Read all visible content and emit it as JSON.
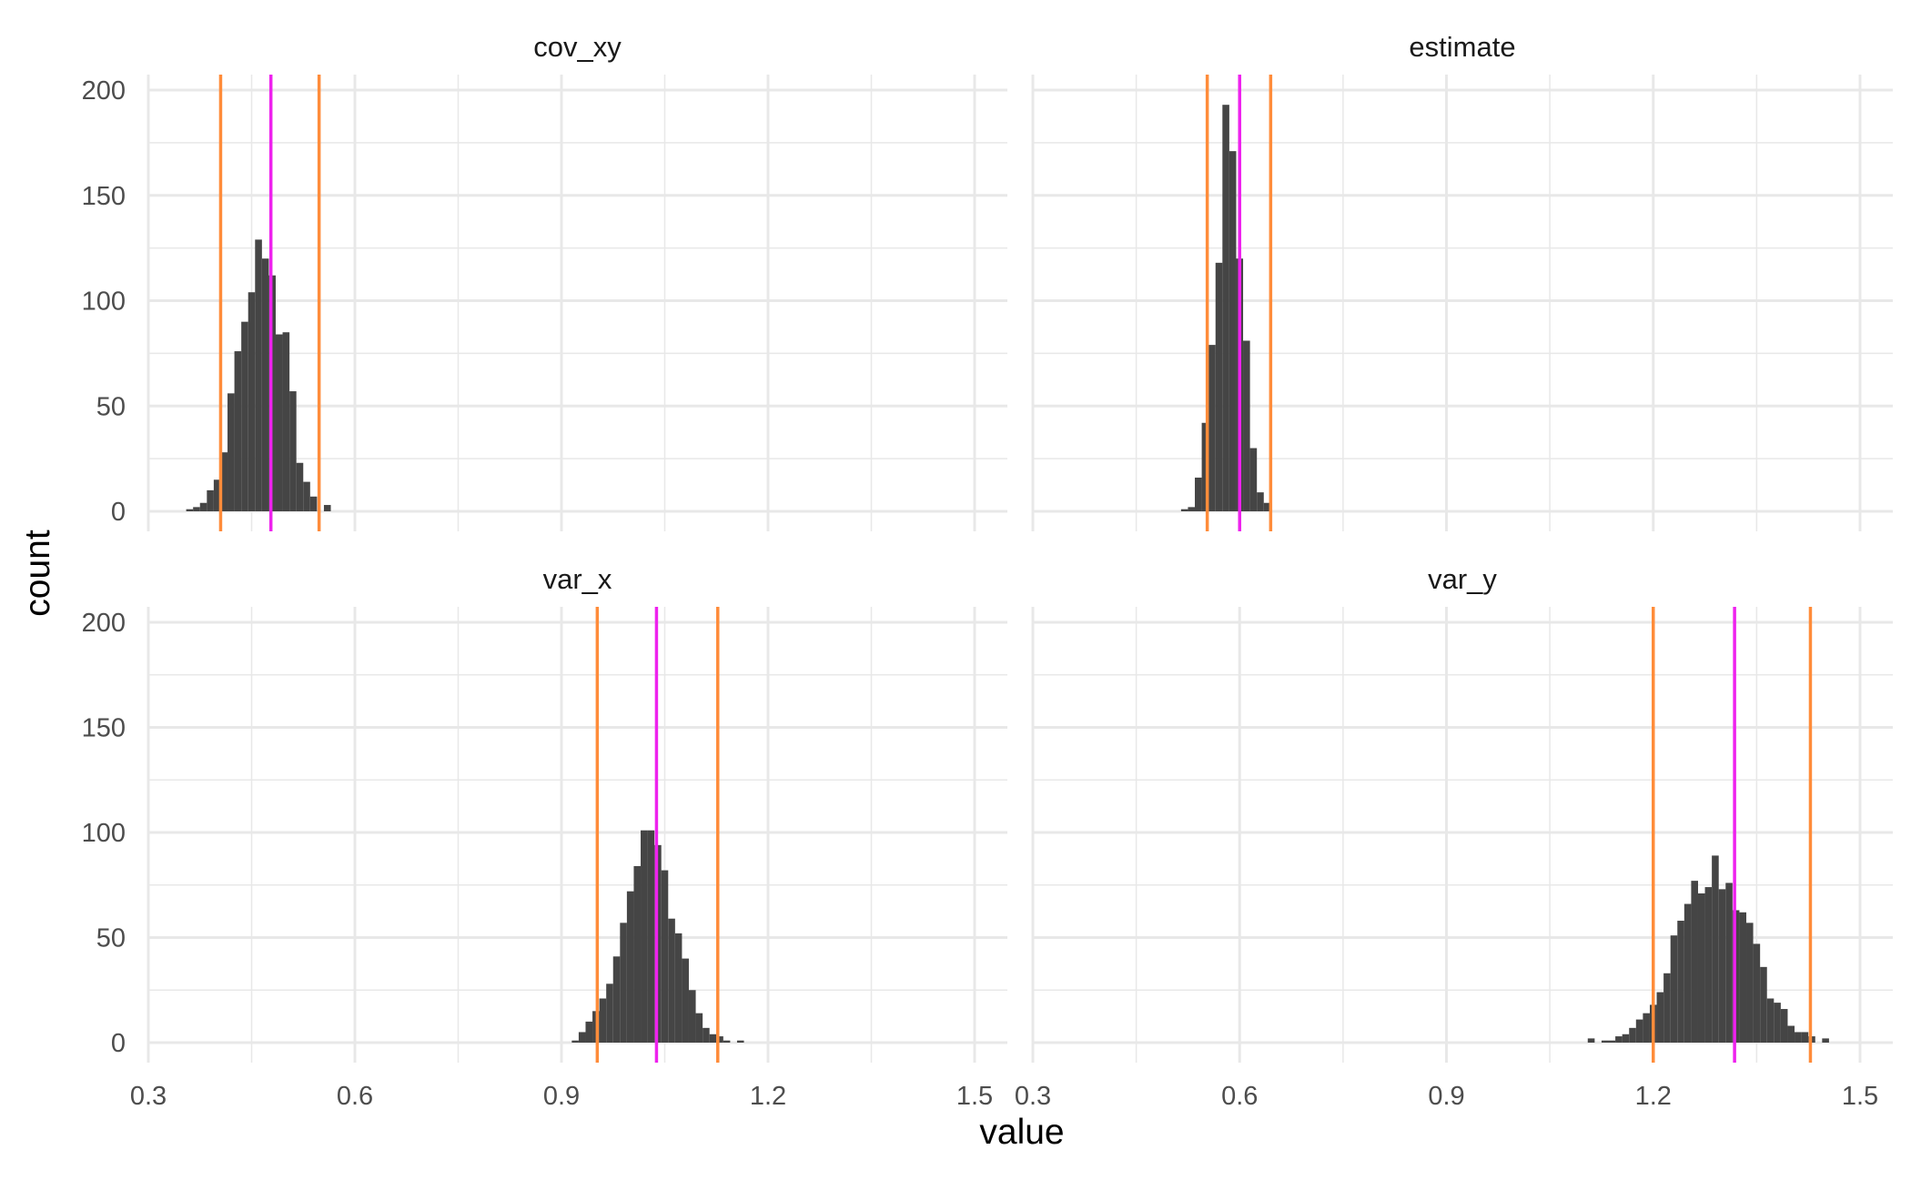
{
  "chart_data": {
    "type": "histogram",
    "xlabel": "value",
    "ylabel": "count",
    "xlim": [
      0.3,
      1.5
    ],
    "ylim": [
      0,
      200
    ],
    "x_ticks": [
      0.3,
      0.6,
      0.9,
      1.2,
      1.5
    ],
    "x_tick_labels": [
      "0.3",
      "0.6",
      "0.9",
      "1.2",
      "1.5"
    ],
    "y_ticks": [
      0,
      50,
      100,
      150,
      200
    ],
    "y_tick_labels": [
      "0",
      "50",
      "100",
      "150",
      "200"
    ],
    "bin_width": 0.01,
    "grid": true,
    "colors": {
      "bars": "#454545",
      "interval_lines": "#ff8c3a",
      "center_line": "#ee22ee",
      "grid": "#e8e8e8"
    },
    "panels": [
      {
        "label": "cov_xy",
        "bins_start": 0.355,
        "counts": [
          1,
          2,
          4,
          10,
          15,
          28,
          56,
          76,
          90,
          104,
          129,
          120,
          112,
          84,
          85,
          57,
          23,
          14,
          7,
          0,
          3
        ],
        "interval": [
          0.405,
          0.548
        ],
        "center": 0.478
      },
      {
        "label": "estimate",
        "bins_start": 0.515,
        "counts": [
          1,
          2,
          16,
          42,
          79,
          118,
          193,
          171,
          120,
          81,
          30,
          9,
          4
        ],
        "interval": [
          0.553,
          0.645
        ],
        "center": 0.6
      },
      {
        "label": "var_x",
        "bins_start": 0.915,
        "counts": [
          1,
          5,
          10,
          15,
          21,
          28,
          41,
          57,
          72,
          84,
          101,
          101,
          94,
          82,
          59,
          52,
          40,
          25,
          14,
          7,
          4,
          3,
          1,
          0,
          1
        ],
        "interval": [
          0.952,
          1.127
        ],
        "center": 1.038
      },
      {
        "label": "var_y",
        "bins_start": 1.105,
        "counts": [
          2,
          0,
          1,
          1,
          3,
          4,
          7,
          11,
          14,
          18,
          24,
          33,
          51,
          58,
          66,
          77,
          71,
          74,
          89,
          73,
          76,
          63,
          62,
          57,
          47,
          36,
          21,
          19,
          16,
          8,
          5,
          5,
          3,
          0,
          2
        ],
        "interval": [
          1.2,
          1.428
        ],
        "center": 1.318
      }
    ]
  }
}
